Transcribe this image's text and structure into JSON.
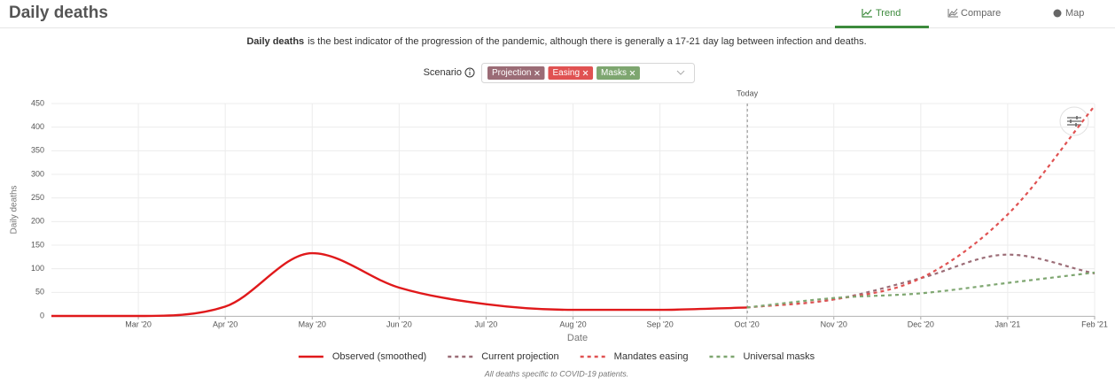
{
  "header": {
    "title": "Daily deaths",
    "tabs": [
      "Trend",
      "Compare",
      "Map"
    ]
  },
  "description": {
    "bold": "Daily deaths",
    "text": "is the best indicator of the progression of the pandemic, although there is generally a 17-21 day lag between infection and deaths."
  },
  "scenario": {
    "label": "Scenario",
    "chips": [
      {
        "label": "Projection",
        "color": "#9b6c76"
      },
      {
        "label": "Easing",
        "color": "#e05252"
      },
      {
        "label": "Masks",
        "color": "#7ea670"
      }
    ]
  },
  "chart_data": {
    "type": "line",
    "xlabel": "Date",
    "ylabel": "Daily deaths",
    "annotation": "Today",
    "x": [
      "2020-02",
      "2020-03",
      "2020-04",
      "2020-05",
      "2020-06",
      "2020-07",
      "2020-08",
      "2020-09",
      "2020-10",
      "2020-11",
      "2020-12",
      "2021-01",
      "2021-02"
    ],
    "xlim": [
      "2020-02",
      "2021-02"
    ],
    "xticks": [
      {
        "value": "2020-03",
        "label": "Mar '20"
      },
      {
        "value": "2020-04",
        "label": "Apr '20"
      },
      {
        "value": "2020-05",
        "label": "May '20"
      },
      {
        "value": "2020-06",
        "label": "Jun '20"
      },
      {
        "value": "2020-07",
        "label": "Jul '20"
      },
      {
        "value": "2020-08",
        "label": "Aug '20"
      },
      {
        "value": "2020-09",
        "label": "Sep '20"
      },
      {
        "value": "2020-10",
        "label": "Oct '20"
      },
      {
        "value": "2020-11",
        "label": "Nov '20"
      },
      {
        "value": "2020-12",
        "label": "Dec '20"
      },
      {
        "value": "2021-01",
        "label": "Jan '21"
      },
      {
        "value": "2021-02",
        "label": "Feb '21"
      }
    ],
    "ylim": [
      0,
      450
    ],
    "yticks": [
      0,
      50,
      100,
      150,
      200,
      250,
      300,
      350,
      400,
      450
    ],
    "grid": true,
    "series": [
      {
        "name": "Observed (smoothed)",
        "color": "#e0191b",
        "style": "solid",
        "values": [
          0,
          0,
          20,
          133,
          60,
          25,
          13,
          13,
          18,
          null,
          null,
          null,
          null
        ]
      },
      {
        "name": "Current projection",
        "color": "#9b6c76",
        "style": "dashed",
        "values": [
          null,
          null,
          null,
          null,
          null,
          null,
          null,
          null,
          18,
          35,
          80,
          130,
          90
        ]
      },
      {
        "name": "Mandates easing",
        "color": "#e05252",
        "style": "dashed",
        "values": [
          null,
          null,
          null,
          null,
          null,
          null,
          null,
          null,
          18,
          35,
          80,
          215,
          445
        ]
      },
      {
        "name": "Universal masks",
        "color": "#7ea670",
        "style": "dashed",
        "values": [
          null,
          null,
          null,
          null,
          null,
          null,
          null,
          null,
          18,
          38,
          48,
          70,
          92
        ]
      }
    ],
    "footnote": "All deaths specific to COVID-19 patients."
  }
}
